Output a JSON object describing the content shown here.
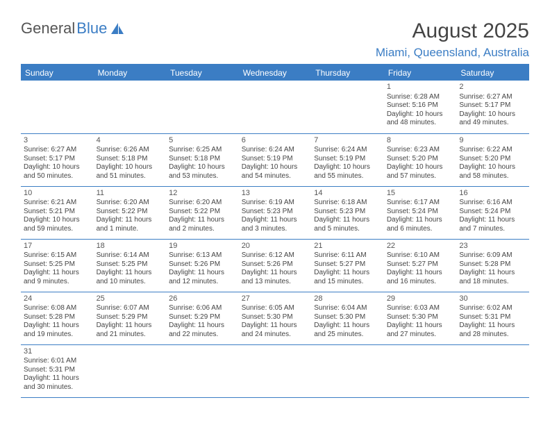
{
  "logo": {
    "text1": "General",
    "text2": "Blue"
  },
  "header": {
    "title": "August 2025",
    "location": "Miami, Queensland, Australia"
  },
  "colors": {
    "accent": "#3b7dc4",
    "text": "#444444",
    "bg": "#ffffff"
  },
  "weekdays": [
    "Sunday",
    "Monday",
    "Tuesday",
    "Wednesday",
    "Thursday",
    "Friday",
    "Saturday"
  ],
  "cells": [
    [
      null,
      null,
      null,
      null,
      null,
      {
        "n": "1",
        "sr": "Sunrise: 6:28 AM",
        "ss": "Sunset: 5:16 PM",
        "d1": "Daylight: 10 hours",
        "d2": "and 48 minutes."
      },
      {
        "n": "2",
        "sr": "Sunrise: 6:27 AM",
        "ss": "Sunset: 5:17 PM",
        "d1": "Daylight: 10 hours",
        "d2": "and 49 minutes."
      }
    ],
    [
      {
        "n": "3",
        "sr": "Sunrise: 6:27 AM",
        "ss": "Sunset: 5:17 PM",
        "d1": "Daylight: 10 hours",
        "d2": "and 50 minutes."
      },
      {
        "n": "4",
        "sr": "Sunrise: 6:26 AM",
        "ss": "Sunset: 5:18 PM",
        "d1": "Daylight: 10 hours",
        "d2": "and 51 minutes."
      },
      {
        "n": "5",
        "sr": "Sunrise: 6:25 AM",
        "ss": "Sunset: 5:18 PM",
        "d1": "Daylight: 10 hours",
        "d2": "and 53 minutes."
      },
      {
        "n": "6",
        "sr": "Sunrise: 6:24 AM",
        "ss": "Sunset: 5:19 PM",
        "d1": "Daylight: 10 hours",
        "d2": "and 54 minutes."
      },
      {
        "n": "7",
        "sr": "Sunrise: 6:24 AM",
        "ss": "Sunset: 5:19 PM",
        "d1": "Daylight: 10 hours",
        "d2": "and 55 minutes."
      },
      {
        "n": "8",
        "sr": "Sunrise: 6:23 AM",
        "ss": "Sunset: 5:20 PM",
        "d1": "Daylight: 10 hours",
        "d2": "and 57 minutes."
      },
      {
        "n": "9",
        "sr": "Sunrise: 6:22 AM",
        "ss": "Sunset: 5:20 PM",
        "d1": "Daylight: 10 hours",
        "d2": "and 58 minutes."
      }
    ],
    [
      {
        "n": "10",
        "sr": "Sunrise: 6:21 AM",
        "ss": "Sunset: 5:21 PM",
        "d1": "Daylight: 10 hours",
        "d2": "and 59 minutes."
      },
      {
        "n": "11",
        "sr": "Sunrise: 6:20 AM",
        "ss": "Sunset: 5:22 PM",
        "d1": "Daylight: 11 hours",
        "d2": "and 1 minute."
      },
      {
        "n": "12",
        "sr": "Sunrise: 6:20 AM",
        "ss": "Sunset: 5:22 PM",
        "d1": "Daylight: 11 hours",
        "d2": "and 2 minutes."
      },
      {
        "n": "13",
        "sr": "Sunrise: 6:19 AM",
        "ss": "Sunset: 5:23 PM",
        "d1": "Daylight: 11 hours",
        "d2": "and 3 minutes."
      },
      {
        "n": "14",
        "sr": "Sunrise: 6:18 AM",
        "ss": "Sunset: 5:23 PM",
        "d1": "Daylight: 11 hours",
        "d2": "and 5 minutes."
      },
      {
        "n": "15",
        "sr": "Sunrise: 6:17 AM",
        "ss": "Sunset: 5:24 PM",
        "d1": "Daylight: 11 hours",
        "d2": "and 6 minutes."
      },
      {
        "n": "16",
        "sr": "Sunrise: 6:16 AM",
        "ss": "Sunset: 5:24 PM",
        "d1": "Daylight: 11 hours",
        "d2": "and 7 minutes."
      }
    ],
    [
      {
        "n": "17",
        "sr": "Sunrise: 6:15 AM",
        "ss": "Sunset: 5:25 PM",
        "d1": "Daylight: 11 hours",
        "d2": "and 9 minutes."
      },
      {
        "n": "18",
        "sr": "Sunrise: 6:14 AM",
        "ss": "Sunset: 5:25 PM",
        "d1": "Daylight: 11 hours",
        "d2": "and 10 minutes."
      },
      {
        "n": "19",
        "sr": "Sunrise: 6:13 AM",
        "ss": "Sunset: 5:26 PM",
        "d1": "Daylight: 11 hours",
        "d2": "and 12 minutes."
      },
      {
        "n": "20",
        "sr": "Sunrise: 6:12 AM",
        "ss": "Sunset: 5:26 PM",
        "d1": "Daylight: 11 hours",
        "d2": "and 13 minutes."
      },
      {
        "n": "21",
        "sr": "Sunrise: 6:11 AM",
        "ss": "Sunset: 5:27 PM",
        "d1": "Daylight: 11 hours",
        "d2": "and 15 minutes."
      },
      {
        "n": "22",
        "sr": "Sunrise: 6:10 AM",
        "ss": "Sunset: 5:27 PM",
        "d1": "Daylight: 11 hours",
        "d2": "and 16 minutes."
      },
      {
        "n": "23",
        "sr": "Sunrise: 6:09 AM",
        "ss": "Sunset: 5:28 PM",
        "d1": "Daylight: 11 hours",
        "d2": "and 18 minutes."
      }
    ],
    [
      {
        "n": "24",
        "sr": "Sunrise: 6:08 AM",
        "ss": "Sunset: 5:28 PM",
        "d1": "Daylight: 11 hours",
        "d2": "and 19 minutes."
      },
      {
        "n": "25",
        "sr": "Sunrise: 6:07 AM",
        "ss": "Sunset: 5:29 PM",
        "d1": "Daylight: 11 hours",
        "d2": "and 21 minutes."
      },
      {
        "n": "26",
        "sr": "Sunrise: 6:06 AM",
        "ss": "Sunset: 5:29 PM",
        "d1": "Daylight: 11 hours",
        "d2": "and 22 minutes."
      },
      {
        "n": "27",
        "sr": "Sunrise: 6:05 AM",
        "ss": "Sunset: 5:30 PM",
        "d1": "Daylight: 11 hours",
        "d2": "and 24 minutes."
      },
      {
        "n": "28",
        "sr": "Sunrise: 6:04 AM",
        "ss": "Sunset: 5:30 PM",
        "d1": "Daylight: 11 hours",
        "d2": "and 25 minutes."
      },
      {
        "n": "29",
        "sr": "Sunrise: 6:03 AM",
        "ss": "Sunset: 5:30 PM",
        "d1": "Daylight: 11 hours",
        "d2": "and 27 minutes."
      },
      {
        "n": "30",
        "sr": "Sunrise: 6:02 AM",
        "ss": "Sunset: 5:31 PM",
        "d1": "Daylight: 11 hours",
        "d2": "and 28 minutes."
      }
    ],
    [
      {
        "n": "31",
        "sr": "Sunrise: 6:01 AM",
        "ss": "Sunset: 5:31 PM",
        "d1": "Daylight: 11 hours",
        "d2": "and 30 minutes."
      },
      null,
      null,
      null,
      null,
      null,
      null
    ]
  ]
}
